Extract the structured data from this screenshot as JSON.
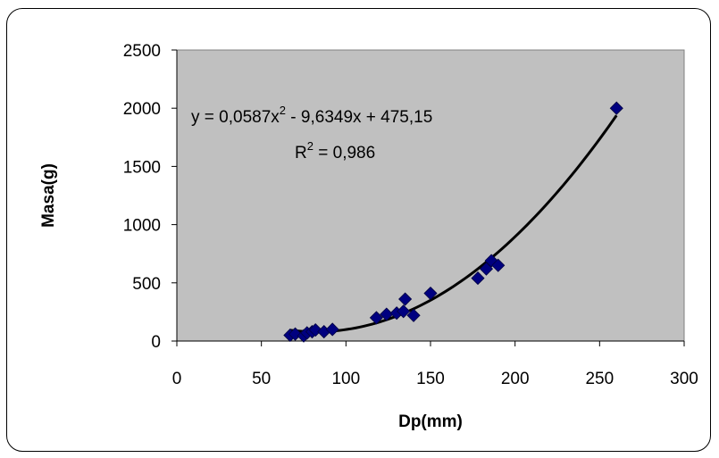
{
  "chart_data": {
    "type": "scatter",
    "title": "",
    "xlabel": "Dp(mm)",
    "ylabel": "Masa(g)",
    "xlim": [
      0,
      300
    ],
    "ylim": [
      0,
      2500
    ],
    "x_ticks": [
      "0",
      "50",
      "100",
      "150",
      "200",
      "250",
      "300"
    ],
    "y_ticks": [
      "0",
      "500",
      "1000",
      "1500",
      "2000",
      "2500"
    ],
    "grid": false,
    "legend": "none",
    "plot_background": "#c0c0c0",
    "marker_color": "#000080",
    "trendline_color": "#000000",
    "series": [
      {
        "marker": "diamond",
        "x": [
          67,
          70,
          75,
          77,
          80,
          82,
          87,
          92,
          118,
          124,
          130,
          134,
          135,
          140,
          150,
          178,
          183,
          186,
          190,
          260
        ],
        "y": [
          50,
          60,
          45,
          70,
          80,
          95,
          80,
          100,
          200,
          230,
          240,
          255,
          360,
          220,
          410,
          540,
          620,
          690,
          650,
          2000
        ]
      }
    ],
    "trendline": {
      "type": "polynomial",
      "coefficients": [
        0.0587,
        -9.6349,
        475.15
      ],
      "x_range": [
        67,
        260
      ],
      "equation_label": "y = 0,0587x",
      "equation_sup": "2",
      "equation_rest": " - 9,6349x + 475,15",
      "r2_label": "R",
      "r2_sup": "2",
      "r2_rest": " = 0,986"
    }
  }
}
